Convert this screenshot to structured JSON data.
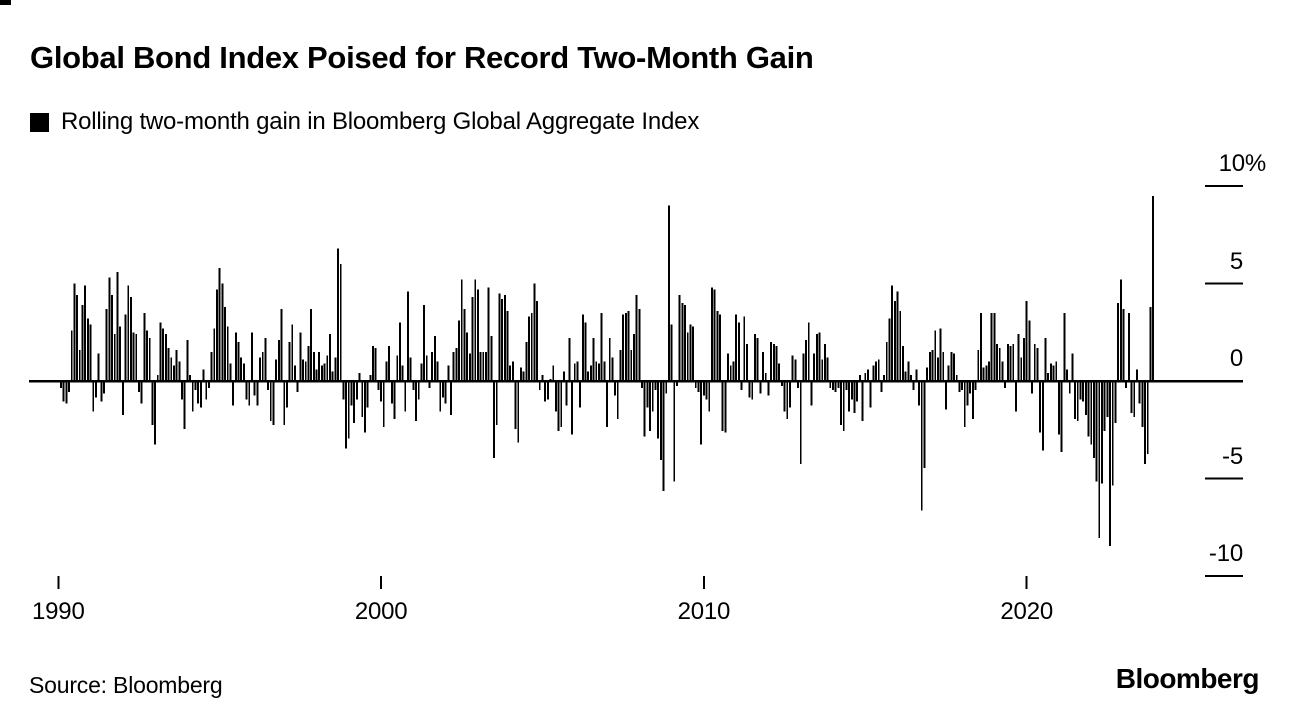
{
  "title": "Global Bond Index Poised for Record Two-Month Gain",
  "legend": {
    "swatch_color": "#000000",
    "label": "Rolling two-month gain in Bloomberg Global Aggregate Index"
  },
  "source": "Source: Bloomberg",
  "logo": "Bloomberg",
  "chart_data": {
    "type": "bar",
    "title": "Global Bond Index Poised for Record Two-Month Gain",
    "series_name": "Rolling two-month gain in Bloomberg Global Aggregate Index",
    "unit": "%",
    "frequency": "monthly",
    "start": "1990-02",
    "end": "2023-12",
    "bar_color": "#000000",
    "grid": "off",
    "legend_position": "top-left",
    "y_axis_side": "right",
    "y_ticks": [
      10,
      5,
      0,
      -5,
      -10
    ],
    "y_tick_labels": [
      "10%",
      "5",
      "0",
      "-5",
      "-10"
    ],
    "ylim": [
      -11,
      11
    ],
    "x_tick_years": [
      1990,
      2000,
      2010,
      2020
    ],
    "x_tick_labels": [
      "1990",
      "2000",
      "2010",
      "2020"
    ],
    "values": [
      -0.3,
      -1.0,
      -1.1,
      -0.5,
      2.6,
      5.0,
      4.4,
      1.6,
      3.9,
      4.9,
      3.2,
      2.9,
      -1.5,
      -0.8,
      1.4,
      -1.0,
      -0.6,
      3.7,
      5.3,
      4.4,
      2.4,
      5.6,
      2.8,
      -1.7,
      3.4,
      4.9,
      4.3,
      2.5,
      2.4,
      -0.5,
      -1.1,
      3.5,
      2.6,
      2.2,
      -2.2,
      -3.2,
      0.3,
      3.0,
      2.7,
      2.4,
      1.7,
      1.2,
      0.8,
      1.6,
      1.0,
      -0.9,
      -2.4,
      2.1,
      0.3,
      -1.5,
      -0.4,
      -1.1,
      -1.3,
      0.6,
      -0.9,
      -0.3,
      1.5,
      2.7,
      4.7,
      5.8,
      5.0,
      3.8,
      2.8,
      0.9,
      -1.2,
      2.5,
      2.0,
      1.2,
      0.9,
      -0.9,
      -1.2,
      2.5,
      -0.7,
      -1.2,
      1.2,
      1.5,
      2.2,
      -0.4,
      -2.0,
      -2.2,
      1.1,
      2.1,
      3.7,
      -2.2,
      -1.3,
      2.0,
      2.9,
      0.8,
      -0.5,
      2.5,
      1.1,
      1.0,
      1.8,
      3.7,
      1.5,
      0.6,
      1.5,
      0.8,
      0.9,
      1.3,
      2.4,
      0.5,
      1.2,
      6.8,
      6.0,
      -0.9,
      -3.4,
      -2.9,
      -1.2,
      -2.1,
      -0.9,
      0.4,
      -1.8,
      -2.6,
      -1.3,
      0.3,
      1.8,
      1.7,
      -0.4,
      -1.0,
      -2.3,
      1.0,
      1.8,
      -1.1,
      -1.9,
      1.3,
      3.0,
      0.8,
      -1.5,
      4.6,
      1.2,
      -0.4,
      -2.0,
      -0.9,
      0.9,
      3.9,
      1.3,
      -0.3,
      1.5,
      2.3,
      1.0,
      -1.5,
      -0.8,
      -1.1,
      0.8,
      -1.7,
      1.5,
      1.7,
      3.1,
      5.2,
      3.7,
      2.5,
      1.4,
      4.3,
      5.2,
      4.7,
      1.5,
      1.5,
      1.5,
      4.8,
      2.3,
      -3.9,
      -2.2,
      4.5,
      4.2,
      4.4,
      3.6,
      0.8,
      1.0,
      -2.4,
      -3.1,
      0.7,
      0.5,
      2.0,
      3.3,
      3.5,
      5.0,
      4.1,
      -0.4,
      0.3,
      -1.0,
      -0.9,
      0.1,
      0.8,
      -1.5,
      -2.5,
      -2.3,
      0.5,
      -1.2,
      2.2,
      -2.7,
      0.9,
      1.0,
      -1.3,
      3.4,
      3.0,
      0.5,
      0.8,
      2.2,
      1.0,
      0.9,
      3.5,
      1.0,
      -2.3,
      2.2,
      1.2,
      -0.7,
      -1.9,
      1.6,
      3.4,
      3.5,
      3.6,
      1.6,
      2.4,
      4.4,
      3.7,
      -0.3,
      -2.8,
      -1.3,
      -2.5,
      -1.5,
      -0.4,
      -2.9,
      -4.0,
      -5.6,
      -0.6,
      9.0,
      2.9,
      -5.1,
      -0.2,
      4.4,
      4.0,
      3.9,
      2.5,
      2.9,
      2.8,
      -0.3,
      -0.5,
      -3.2,
      -0.7,
      -0.9,
      -1.5,
      4.8,
      4.7,
      3.6,
      3.4,
      -2.5,
      -2.6,
      1.4,
      0.8,
      1.0,
      3.4,
      3.0,
      -0.4,
      3.3,
      1.9,
      -0.8,
      -0.9,
      2.4,
      2.2,
      -0.6,
      1.5,
      0.4,
      -0.7,
      2.0,
      1.9,
      1.8,
      0.9,
      -0.2,
      -1.5,
      -1.9,
      -1.3,
      1.3,
      1.1,
      -0.3,
      -4.2,
      1.4,
      2.1,
      3.0,
      -1.2,
      1.4,
      2.4,
      2.5,
      1.1,
      1.9,
      1.2,
      -0.3,
      -0.4,
      -0.5,
      -0.3,
      -2.2,
      -2.5,
      -0.4,
      -1.5,
      -0.9,
      -1.6,
      -1.0,
      0.3,
      -2.0,
      0.4,
      0.6,
      -1.3,
      0.8,
      1.0,
      1.1,
      -0.5,
      0.3,
      2.0,
      3.2,
      4.9,
      4.1,
      4.6,
      3.6,
      1.8,
      0.5,
      1.0,
      0.3,
      -0.4,
      0.6,
      -1.2,
      -6.6,
      -4.4,
      0.7,
      1.5,
      1.6,
      2.6,
      1.2,
      2.7,
      1.5,
      -1.4,
      0.8,
      1.5,
      1.4,
      0.3,
      -0.5,
      -0.4,
      -2.3,
      -1.2,
      -0.6,
      -1.9,
      -0.4,
      1.6,
      3.5,
      0.7,
      0.8,
      1.0,
      3.5,
      3.5,
      1.9,
      1.7,
      1.0,
      -0.3,
      1.9,
      1.8,
      1.9,
      -1.5,
      2.4,
      1.2,
      2.2,
      4.1,
      3.1,
      -0.6,
      1.9,
      1.7,
      -2.6,
      -3.5,
      2.2,
      0.4,
      0.9,
      0.8,
      1.0,
      -2.7,
      -3.6,
      3.5,
      0.6,
      -0.6,
      1.4,
      -1.9,
      -2.0,
      -0.9,
      -1.0,
      -1.7,
      -2.8,
      -3.2,
      -3.9,
      -5.1,
      -8.0,
      -5.2,
      -2.5,
      -1.8,
      -8.4,
      -5.3,
      -2.1,
      4.0,
      5.2,
      3.7,
      -0.3,
      3.5,
      -1.6,
      -1.8,
      0.6,
      -1.1,
      -2.3,
      -4.2,
      -3.7,
      3.8,
      9.5
    ]
  }
}
